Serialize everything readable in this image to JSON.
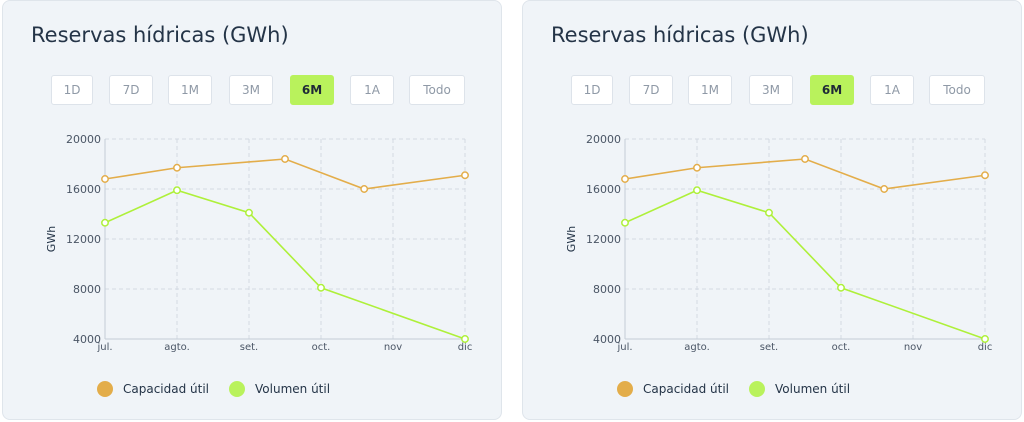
{
  "panels": [
    {
      "title": "Reservas hídricas (GWh)",
      "ranges": [
        "1D",
        "7D",
        "1M",
        "3M",
        "6M",
        "1A",
        "Todo"
      ],
      "active_range": "6M"
    },
    {
      "title": "Reservas hídricas (GWh)",
      "ranges": [
        "1D",
        "7D",
        "1M",
        "3M",
        "6M",
        "1A",
        "Todo"
      ],
      "active_range": "6M"
    }
  ],
  "colors": {
    "capacidad": "#e3ad4a",
    "volumen": "#b9f25c",
    "volumen_line": "#aef03a",
    "active_button": "#b9f25c"
  },
  "chart_data": [
    {
      "type": "line",
      "title": "Reservas hídricas (GWh)",
      "xlabel": "",
      "ylabel": "GWh",
      "x_tick_labels": [
        "jul.",
        "agto.",
        "set.",
        "oct.",
        "nov",
        "dic"
      ],
      "x_range": [
        0,
        5
      ],
      "ylim": [
        4000,
        20000
      ],
      "y_ticks": [
        4000,
        8000,
        12000,
        16000,
        20000
      ],
      "grid": true,
      "legend_position": "bottom-left",
      "series": [
        {
          "name": "Capacidad útil",
          "color": "#e3ad4a",
          "x": [
            0,
            1,
            2.5,
            3.6,
            5
          ],
          "values": [
            16800,
            17700,
            18400,
            16000,
            17100
          ]
        },
        {
          "name": "Volumen útil",
          "color": "#b9f25c",
          "x": [
            0,
            1,
            2,
            3,
            5
          ],
          "values": [
            13300,
            15900,
            14100,
            8100,
            4000
          ]
        }
      ]
    },
    {
      "type": "line",
      "title": "Reservas hídricas (GWh)",
      "xlabel": "",
      "ylabel": "GWh",
      "x_tick_labels": [
        "jul.",
        "agto.",
        "set.",
        "oct.",
        "nov",
        "dic"
      ],
      "x_range": [
        0,
        5
      ],
      "ylim": [
        4000,
        20000
      ],
      "y_ticks": [
        4000,
        8000,
        12000,
        16000,
        20000
      ],
      "grid": true,
      "legend_position": "bottom-left",
      "series": [
        {
          "name": "Capacidad útil",
          "color": "#e3ad4a",
          "x": [
            0,
            1,
            2.5,
            3.6,
            5
          ],
          "values": [
            16800,
            17700,
            18400,
            16000,
            17100
          ]
        },
        {
          "name": "Volumen útil",
          "color": "#b9f25c",
          "x": [
            0,
            1,
            2,
            3,
            5
          ],
          "values": [
            13300,
            15900,
            14100,
            8100,
            4000
          ]
        }
      ]
    }
  ]
}
